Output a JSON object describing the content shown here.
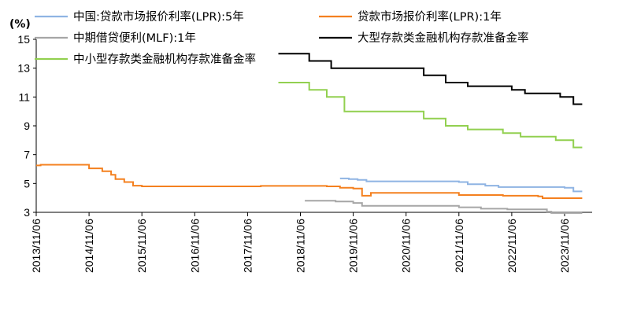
{
  "chart_data": {
    "type": "line",
    "unit_label": "(%)",
    "x_start": "2013-11",
    "x_end": "2024-03",
    "ylim": [
      3,
      15
    ],
    "yticks": [
      3,
      5,
      7,
      9,
      11,
      13,
      15
    ],
    "xticks": [
      "2013/11/06",
      "2014/11/06",
      "2015/11/06",
      "2016/11/06",
      "2017/11/06",
      "2018/11/06",
      "2019/11/06",
      "2020/11/06",
      "2021/11/06",
      "2022/11/06",
      "2023/11/06"
    ],
    "series": [
      {
        "name": "中国:贷款市场报价利率(LPR):5年",
        "color": "#8fb4e3",
        "points": [
          [
            "2019-08",
            5.35
          ],
          [
            "2019-10",
            5.35
          ],
          [
            "2019-10",
            5.3
          ],
          [
            "2019-12",
            5.3
          ],
          [
            "2019-12",
            5.25
          ],
          [
            "2020-02",
            5.25
          ],
          [
            "2020-02",
            5.15
          ],
          [
            "2021-11",
            5.15
          ],
          [
            "2021-11",
            5.1
          ],
          [
            "2022-01",
            5.1
          ],
          [
            "2022-01",
            4.95
          ],
          [
            "2022-05",
            4.95
          ],
          [
            "2022-05",
            4.85
          ],
          [
            "2022-08",
            4.85
          ],
          [
            "2022-08",
            4.75
          ],
          [
            "2023-11",
            4.75
          ],
          [
            "2023-11",
            4.7
          ],
          [
            "2024-01",
            4.7
          ],
          [
            "2024-01",
            4.45
          ],
          [
            "2024-03",
            4.45
          ]
        ]
      },
      {
        "name": "贷款市场报价利率(LPR):1年",
        "color": "#f4801f",
        "points": [
          [
            "2013-11",
            6.25
          ],
          [
            "2013-12",
            6.25
          ],
          [
            "2013-12",
            6.3
          ],
          [
            "2014-11",
            6.3
          ],
          [
            "2014-11",
            6.05
          ],
          [
            "2015-02",
            6.05
          ],
          [
            "2015-02",
            5.85
          ],
          [
            "2015-04",
            5.85
          ],
          [
            "2015-04",
            5.6
          ],
          [
            "2015-05",
            5.6
          ],
          [
            "2015-05",
            5.3
          ],
          [
            "2015-07",
            5.3
          ],
          [
            "2015-07",
            5.1
          ],
          [
            "2015-09",
            5.1
          ],
          [
            "2015-09",
            4.85
          ],
          [
            "2015-11",
            4.85
          ],
          [
            "2015-11",
            4.8
          ],
          [
            "2018-02",
            4.8
          ],
          [
            "2018-02",
            4.83
          ],
          [
            "2019-05",
            4.83
          ],
          [
            "2019-05",
            4.8
          ],
          [
            "2019-08",
            4.8
          ],
          [
            "2019-08",
            4.71
          ],
          [
            "2019-11",
            4.71
          ],
          [
            "2019-11",
            4.65
          ],
          [
            "2020-01",
            4.65
          ],
          [
            "2020-01",
            4.15
          ],
          [
            "2020-03",
            4.15
          ],
          [
            "2020-03",
            4.35
          ],
          [
            "2021-11",
            4.35
          ],
          [
            "2021-11",
            4.2
          ],
          [
            "2022-09",
            4.2
          ],
          [
            "2022-09",
            4.15
          ],
          [
            "2023-05",
            4.15
          ],
          [
            "2023-05",
            4.1
          ],
          [
            "2023-06",
            4.1
          ],
          [
            "2023-06",
            3.98
          ],
          [
            "2024-03",
            3.98
          ]
        ]
      },
      {
        "name": "中期借贷便利(MLF):1年",
        "color": "#a6a6a6",
        "points": [
          [
            "2018-12",
            3.8
          ],
          [
            "2019-07",
            3.8
          ],
          [
            "2019-07",
            3.75
          ],
          [
            "2019-11",
            3.75
          ],
          [
            "2019-11",
            3.65
          ],
          [
            "2020-01",
            3.65
          ],
          [
            "2020-01",
            3.45
          ],
          [
            "2021-11",
            3.45
          ],
          [
            "2021-11",
            3.35
          ],
          [
            "2022-04",
            3.35
          ],
          [
            "2022-04",
            3.25
          ],
          [
            "2022-10",
            3.25
          ],
          [
            "2022-10",
            3.2
          ],
          [
            "2023-07",
            3.2
          ],
          [
            "2023-07",
            3.05
          ],
          [
            "2023-08",
            3.05
          ],
          [
            "2023-08",
            2.95
          ],
          [
            "2024-03",
            2.95
          ]
        ]
      },
      {
        "name": "大型存款类金融机构存款准备金率",
        "color": "#000000",
        "points": [
          [
            "2018-06",
            14.0
          ],
          [
            "2019-01",
            14.0
          ],
          [
            "2019-01",
            13.5
          ],
          [
            "2019-06",
            13.5
          ],
          [
            "2019-06",
            13.0
          ],
          [
            "2021-03",
            13.0
          ],
          [
            "2021-03",
            12.5
          ],
          [
            "2021-08",
            12.5
          ],
          [
            "2021-08",
            12.0
          ],
          [
            "2022-01",
            12.0
          ],
          [
            "2022-01",
            11.75
          ],
          [
            "2022-11",
            11.75
          ],
          [
            "2022-11",
            11.5
          ],
          [
            "2023-02",
            11.5
          ],
          [
            "2023-02",
            11.25
          ],
          [
            "2023-10",
            11.25
          ],
          [
            "2023-10",
            11.0
          ],
          [
            "2024-01",
            11.0
          ],
          [
            "2024-01",
            10.5
          ],
          [
            "2024-03",
            10.5
          ]
        ]
      },
      {
        "name": "中小型存款类金融机构存款准备金率",
        "color": "#92d050",
        "points": [
          [
            "2018-06",
            12.0
          ],
          [
            "2019-01",
            12.0
          ],
          [
            "2019-01",
            11.5
          ],
          [
            "2019-05",
            11.5
          ],
          [
            "2019-05",
            11.0
          ],
          [
            "2019-09",
            11.0
          ],
          [
            "2019-09",
            10.0
          ],
          [
            "2021-03",
            10.0
          ],
          [
            "2021-03",
            9.5
          ],
          [
            "2021-08",
            9.5
          ],
          [
            "2021-08",
            9.0
          ],
          [
            "2022-01",
            9.0
          ],
          [
            "2022-01",
            8.75
          ],
          [
            "2022-09",
            8.75
          ],
          [
            "2022-09",
            8.5
          ],
          [
            "2023-01",
            8.5
          ],
          [
            "2023-01",
            8.25
          ],
          [
            "2023-09",
            8.25
          ],
          [
            "2023-09",
            8.0
          ],
          [
            "2024-01",
            8.0
          ],
          [
            "2024-01",
            7.5
          ],
          [
            "2024-03",
            7.5
          ]
        ]
      }
    ],
    "legend_placement": "top"
  }
}
